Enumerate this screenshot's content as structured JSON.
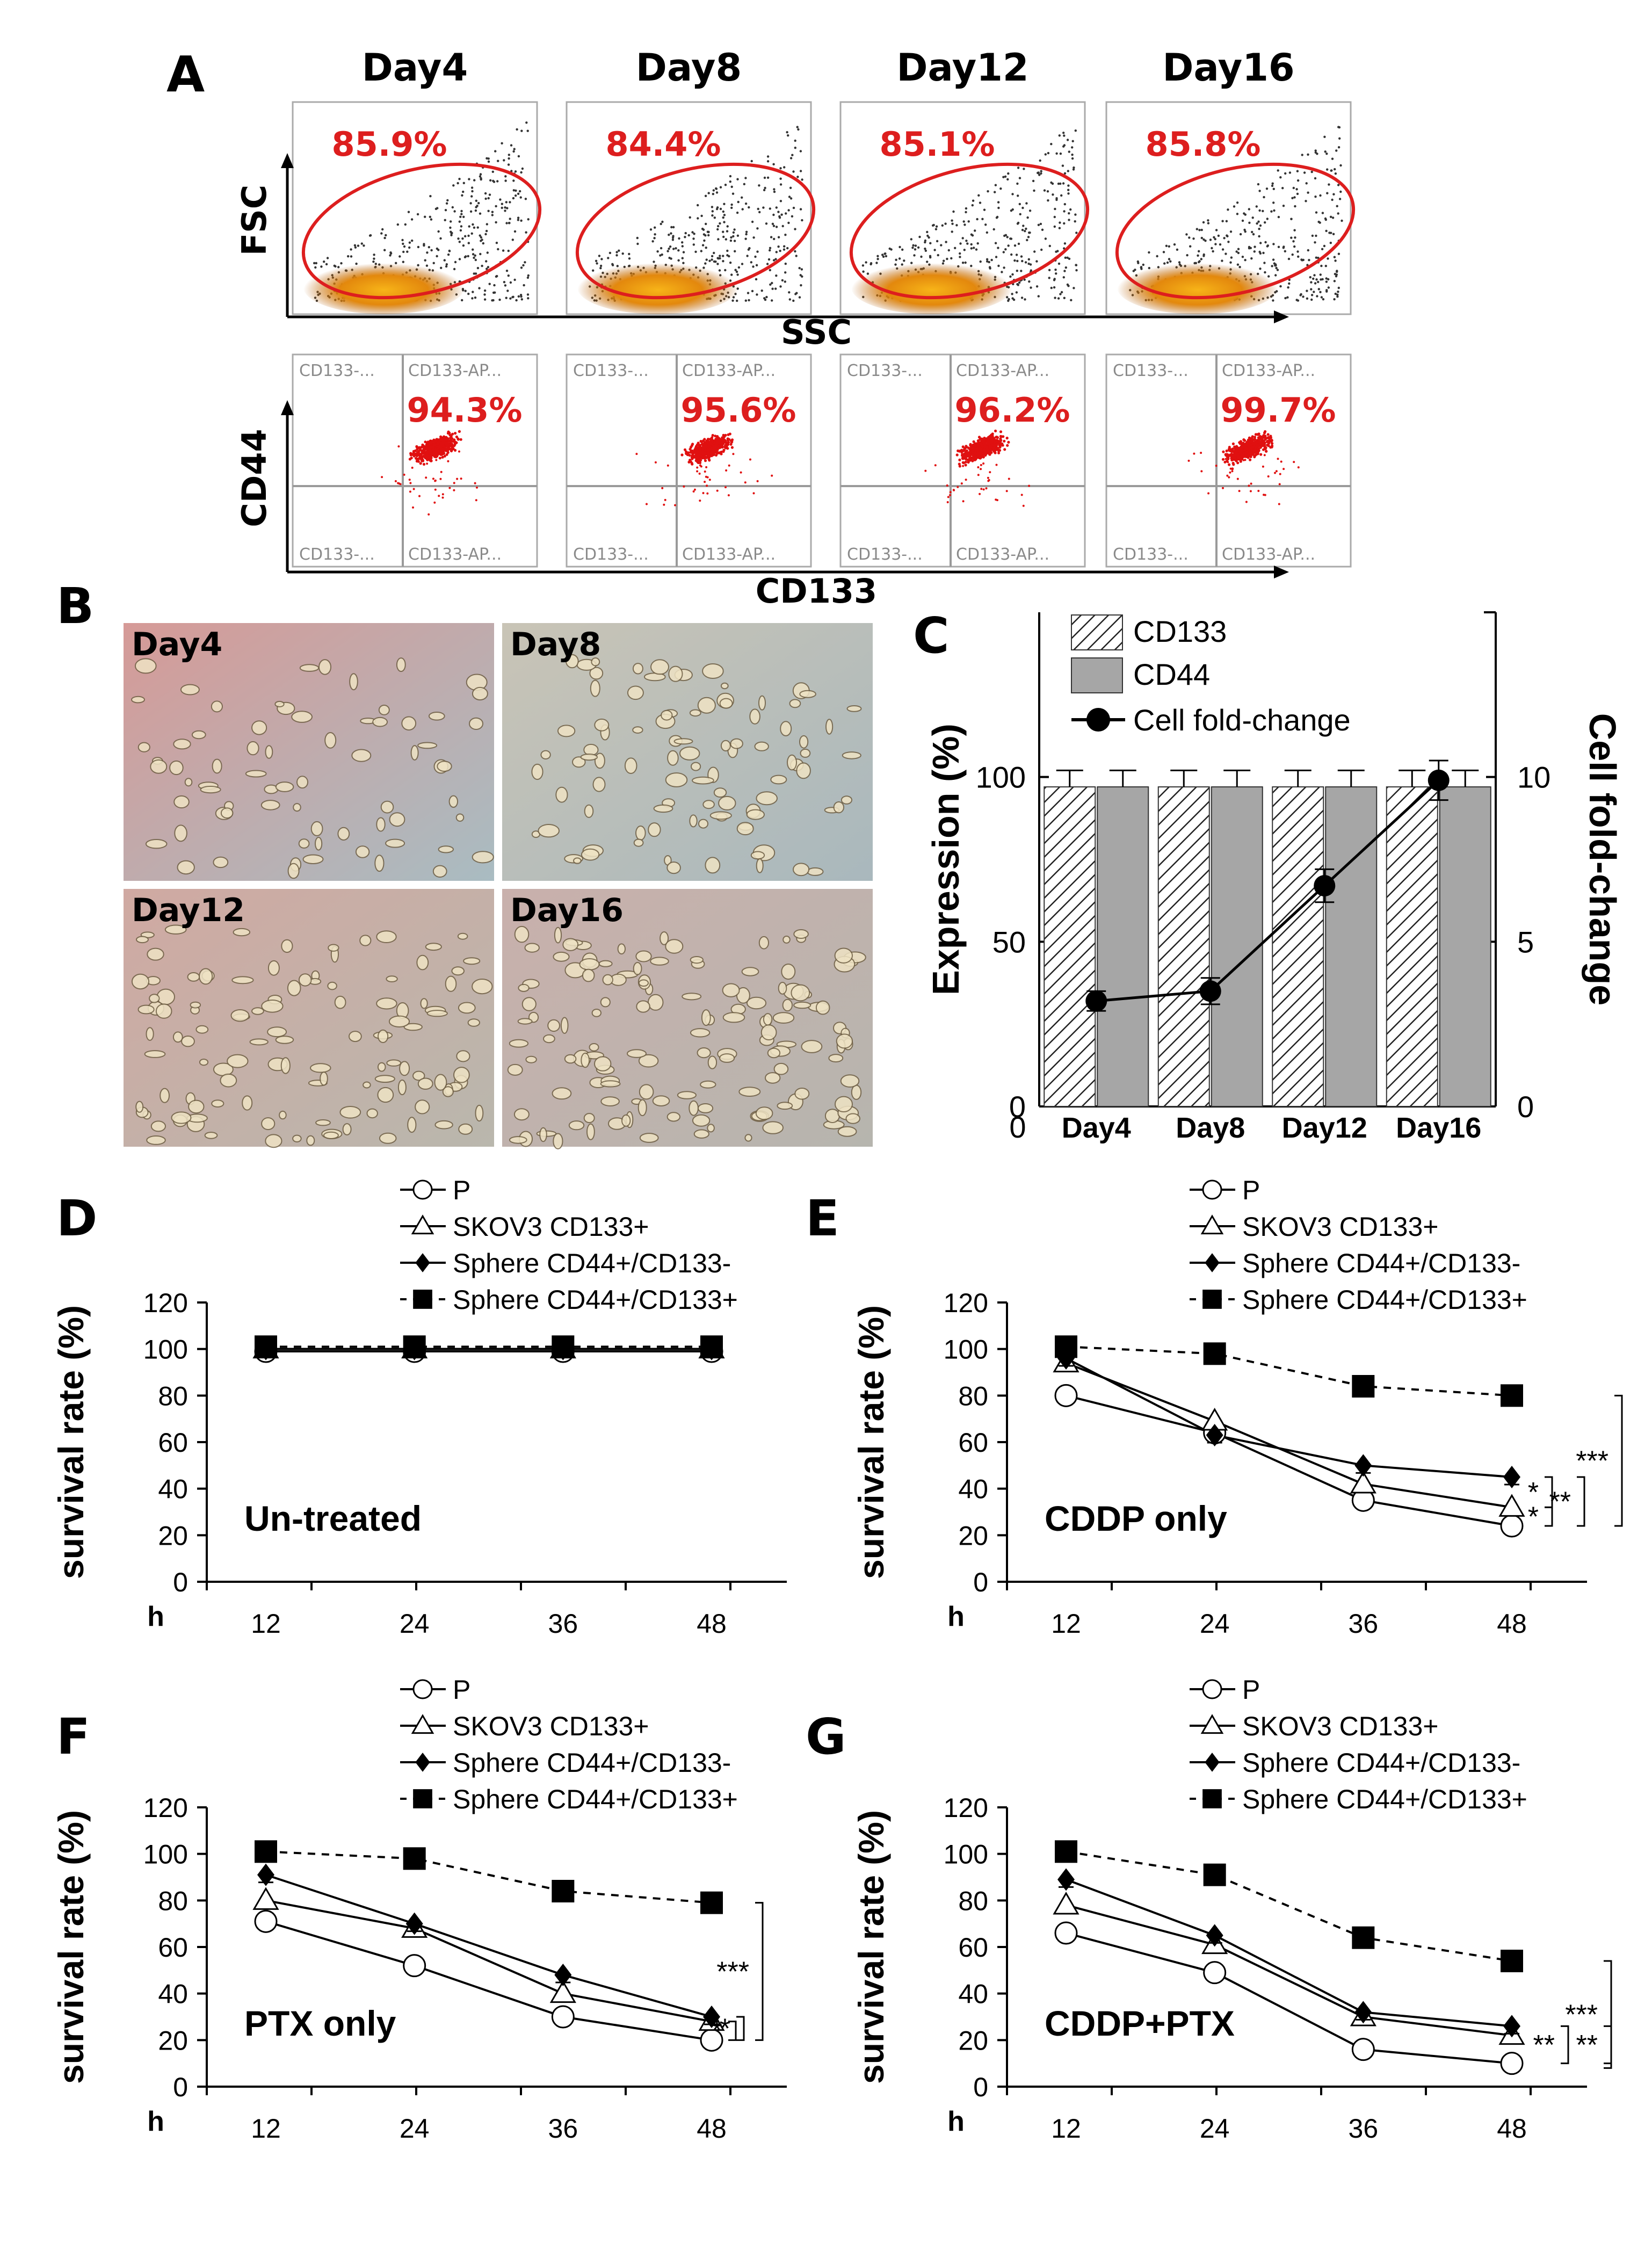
{
  "panel_letters": {
    "A": "A",
    "B": "B",
    "C": "C",
    "D": "D",
    "E": "E",
    "F": "F",
    "G": "G"
  },
  "colors": {
    "gate": "#dd1e1e",
    "bar_gray": "#a6a6a6",
    "dots": "#e01010"
  },
  "panel_A": {
    "days": [
      "Day4",
      "Day8",
      "Day12",
      "Day16"
    ],
    "fsc_label": "FSC",
    "ssc_label": "SSC",
    "cd44_label": "CD44",
    "cd133_label": "CD133",
    "gate_percents": [
      "85.9%",
      "84.4%",
      "85.1%",
      "85.8%"
    ],
    "double_positive_percents": [
      "94.3%",
      "95.6%",
      "96.2%",
      "99.7%"
    ],
    "quad_labels": {
      "ul": "CD133-...",
      "ur": "CD133-AP...",
      "ll": "CD133-...",
      "lr": "CD133-AP..."
    }
  },
  "panel_B": {
    "labels": [
      "Day4",
      "Day8",
      "Day12",
      "Day16"
    ]
  },
  "chart_data": [
    {
      "id": "C",
      "type": "bar",
      "categories": [
        "Day4",
        "Day8",
        "Day12",
        "Day16"
      ],
      "series": [
        {
          "name": "CD133",
          "values": [
            97,
            97,
            97,
            97
          ],
          "error": [
            5,
            5,
            5,
            5
          ]
        },
        {
          "name": "CD44",
          "values": [
            97,
            97,
            97,
            97
          ],
          "error": [
            5,
            5,
            5,
            5
          ]
        }
      ],
      "line_series": {
        "name": "Cell fold-change",
        "values": [
          3.2,
          3.5,
          6.7,
          9.9
        ],
        "error": [
          0.3,
          0.4,
          0.5,
          0.6
        ],
        "axis": "right"
      },
      "ylabel": "Expression (%)",
      "y2label": "Cell fold-change",
      "ylim": [
        0,
        150
      ],
      "y_ticks": [
        "0",
        "50",
        "100"
      ],
      "y2lim": [
        0,
        15
      ],
      "y2_ticks": [
        "0",
        "5",
        "10"
      ],
      "legend": [
        "CD133",
        "CD44",
        "Cell fold-change"
      ],
      "legend_position": "top-left"
    },
    {
      "id": "D",
      "type": "line",
      "title": "Un-treated",
      "x": [
        12,
        24,
        36,
        48
      ],
      "x_ticks": [
        "12",
        "24",
        "36",
        "48"
      ],
      "x_unit": "h",
      "ylabel": "survival rate (%)",
      "ylim": [
        0,
        120
      ],
      "y_ticks": [
        "0",
        "20",
        "40",
        "60",
        "80",
        "100",
        "120"
      ],
      "legend": [
        "P",
        "SKOV3 CD133+",
        "Sphere CD44+/CD133-",
        "Sphere CD44+/CD133+"
      ],
      "series": [
        {
          "name": "P",
          "values": [
            99,
            99,
            99,
            99
          ]
        },
        {
          "name": "SKOV3 CD133+",
          "values": [
            100,
            100,
            100,
            100
          ]
        },
        {
          "name": "Sphere CD44+/CD133-",
          "values": [
            100,
            100,
            100,
            100
          ]
        },
        {
          "name": "Sphere CD44+/CD133+",
          "values": [
            101,
            101,
            101,
            101
          ]
        }
      ],
      "significance": []
    },
    {
      "id": "E",
      "type": "line",
      "title": "CDDP only",
      "x": [
        12,
        24,
        36,
        48
      ],
      "x_ticks": [
        "12",
        "24",
        "36",
        "48"
      ],
      "x_unit": "h",
      "ylabel": "survival rate (%)",
      "ylim": [
        0,
        120
      ],
      "y_ticks": [
        "0",
        "20",
        "40",
        "60",
        "80",
        "100",
        "120"
      ],
      "legend": [
        "P",
        "SKOV3 CD133+",
        "Sphere CD44+/CD133-",
        "Sphere CD44+/CD133+"
      ],
      "series": [
        {
          "name": "P",
          "values": [
            80,
            64,
            35,
            24
          ]
        },
        {
          "name": "SKOV3 CD133+",
          "values": [
            94,
            69,
            42,
            32
          ]
        },
        {
          "name": "Sphere CD44+/CD133-",
          "values": [
            96,
            63,
            50,
            45
          ]
        },
        {
          "name": "Sphere CD44+/CD133+",
          "values": [
            101,
            98,
            84,
            80
          ]
        }
      ],
      "significance": [
        "***",
        "*",
        "**",
        "*"
      ]
    },
    {
      "id": "F",
      "type": "line",
      "title": "PTX only",
      "x": [
        12,
        24,
        36,
        48
      ],
      "x_ticks": [
        "12",
        "24",
        "36",
        "48"
      ],
      "x_unit": "h",
      "ylabel": "survival rate (%)",
      "ylim": [
        0,
        120
      ],
      "y_ticks": [
        "0",
        "20",
        "40",
        "60",
        "80",
        "100",
        "120"
      ],
      "legend": [
        "P",
        "SKOV3 CD133+",
        "Sphere CD44+/CD133-",
        "Sphere CD44+/CD133+"
      ],
      "series": [
        {
          "name": "P",
          "values": [
            71,
            52,
            30,
            20
          ]
        },
        {
          "name": "SKOV3 CD133+",
          "values": [
            80,
            68,
            40,
            28
          ]
        },
        {
          "name": "Sphere CD44+/CD133-",
          "values": [
            91,
            70,
            48,
            30
          ]
        },
        {
          "name": "Sphere CD44+/CD133+",
          "values": [
            101,
            98,
            84,
            79
          ]
        }
      ],
      "significance": [
        "***",
        "*",
        "*"
      ]
    },
    {
      "id": "G",
      "type": "line",
      "title": "CDDP+PTX",
      "x": [
        12,
        24,
        36,
        48
      ],
      "x_ticks": [
        "12",
        "24",
        "36",
        "48"
      ],
      "x_unit": "h",
      "ylabel": "survival rate (%)",
      "ylim": [
        0,
        120
      ],
      "y_ticks": [
        "0",
        "20",
        "40",
        "60",
        "80",
        "100",
        "120"
      ],
      "legend": [
        "P",
        "SKOV3 CD133+",
        "Sphere CD44+/CD133-",
        "Sphere CD44+/CD133+"
      ],
      "series": [
        {
          "name": "P",
          "values": [
            66,
            49,
            16,
            10
          ]
        },
        {
          "name": "SKOV3 CD133+",
          "values": [
            78,
            61,
            30,
            22
          ]
        },
        {
          "name": "Sphere CD44+/CD133-",
          "values": [
            89,
            65,
            32,
            26
          ]
        },
        {
          "name": "Sphere CD44+/CD133+",
          "values": [
            101,
            91,
            64,
            54
          ]
        }
      ],
      "significance": [
        "***",
        "**",
        "**"
      ]
    }
  ]
}
